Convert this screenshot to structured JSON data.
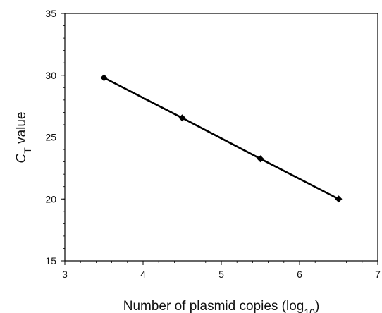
{
  "chart_data": {
    "type": "line",
    "title": "",
    "xlabel": {
      "main": "Number of plasmid copies (log",
      "sub": "10",
      "close": ")"
    },
    "ylabel": {
      "main": "C",
      "sub": "T",
      "rest": " value"
    },
    "xlim": [
      3,
      7
    ],
    "ylim": [
      15,
      35
    ],
    "x_ticks": [
      3,
      4,
      5,
      6,
      7
    ],
    "y_ticks": [
      15,
      20,
      25,
      30,
      35
    ],
    "x_minor_step": 0.2,
    "y_minor_step": 1,
    "grid": false,
    "legend": "none",
    "marker": "diamond",
    "colors": {
      "line": "#000000",
      "axis": "#000000"
    },
    "series": [
      {
        "x": [
          3.5,
          4.5,
          5.5,
          6.5
        ],
        "y": [
          29.8,
          26.55,
          23.25,
          20.0
        ]
      }
    ]
  }
}
